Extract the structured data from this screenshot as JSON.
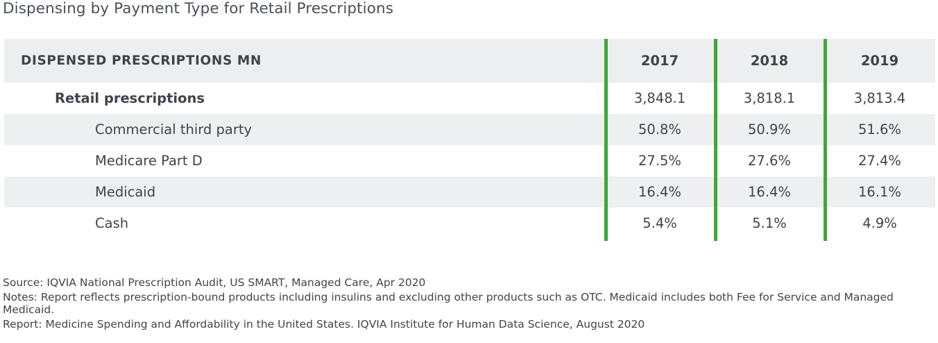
{
  "title": "Dispensing by Payment Type for Retail Prescriptions",
  "accent_color": "#3aa936",
  "chart_data": {
    "type": "table",
    "columns": [
      "DISPENSED PRESCRIPTIONS MN",
      "2017",
      "2018",
      "2019"
    ],
    "rows": [
      {
        "label": "Retail prescriptions",
        "values": [
          "3,848.1",
          "3,818.1",
          "3,813.4"
        ]
      },
      {
        "label": "Commercial third party",
        "values": [
          "50.8%",
          "50.9%",
          "51.6%"
        ]
      },
      {
        "label": "Medicare Part D",
        "values": [
          "27.5%",
          "27.6%",
          "27.4%"
        ]
      },
      {
        "label": "Medicaid",
        "values": [
          "16.4%",
          "16.4%",
          "16.1%"
        ]
      },
      {
        "label": "Cash",
        "values": [
          "5.4%",
          "5.1%",
          "4.9%"
        ]
      }
    ]
  },
  "footnotes": {
    "source": "Source: IQVIA National Prescription Audit, US SMART, Managed Care, Apr 2020",
    "notes": "Notes: Report reflects prescription-bound products including insulins and excluding other products such as OTC. Medicaid includes both Fee for Service and Managed Medicaid.",
    "report": "Report: Medicine Spending and Affordability in the United States. IQVIA Institute for Human Data Science, August 2020"
  }
}
